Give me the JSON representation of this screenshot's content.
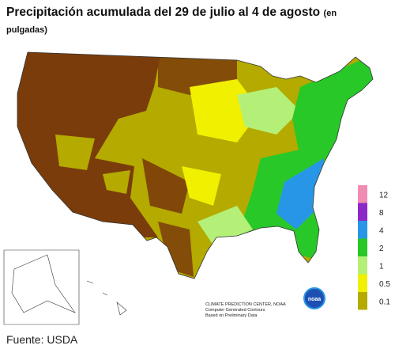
{
  "header": {
    "title": "Precipitación acumulada del 29 de julio al 4 de agosto",
    "subtitle": "(en pulgadas)"
  },
  "legend": [
    {
      "label": 12,
      "color": "#f08cb4"
    },
    {
      "label": 8,
      "color": "#8c28c8"
    },
    {
      "label": 4,
      "color": "#2896e6"
    },
    {
      "label": 2,
      "color": "#28c828"
    },
    {
      "label": 1,
      "color": "#b4f078"
    },
    {
      "label": 0.5,
      "color": "#f0f000"
    },
    {
      "label": 0.1,
      "color": "#b4aa00"
    }
  ],
  "credits": [
    "CLIMATE PREDICTION CENTER, NOAA",
    "Computer Generated Contours",
    "Based on Preliminary Data"
  ],
  "logo": "noaa",
  "source": "Fuente: USDA"
}
